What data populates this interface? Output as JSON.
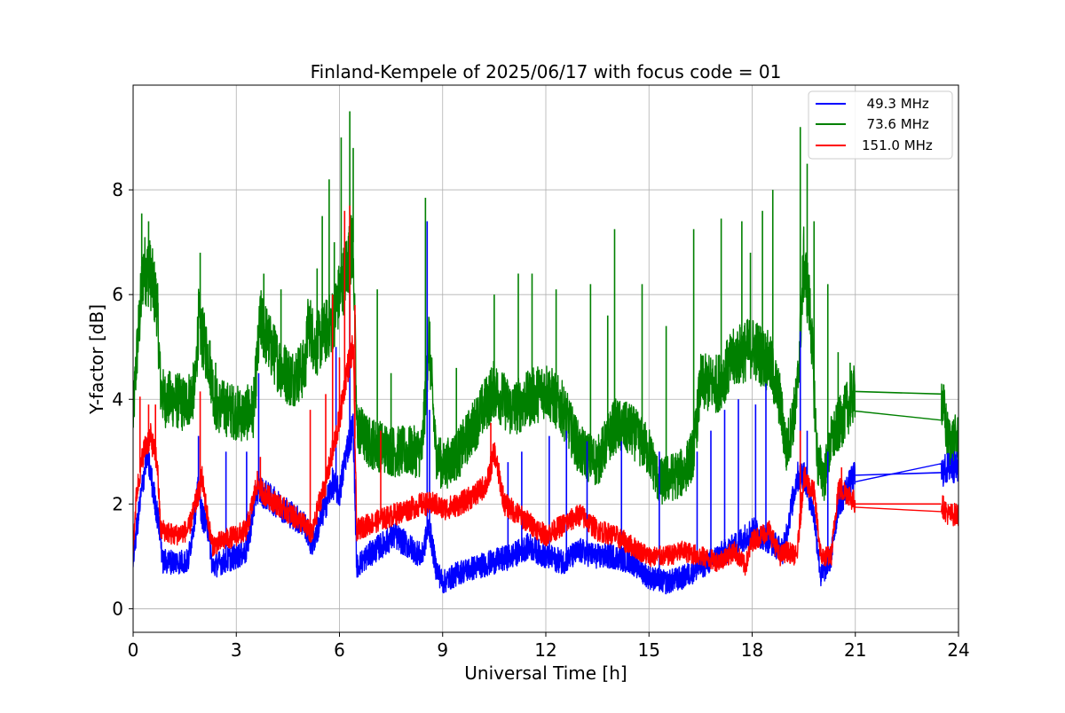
{
  "chart_data": {
    "type": "line",
    "title": "Finland-Kempele of 2025/06/17 with focus code = 01",
    "xlabel": "Universal Time [h]",
    "ylabel": "Y-factor [dB]",
    "xlim": [
      0,
      24
    ],
    "ylim": [
      -0.45,
      10.0
    ],
    "xticks": [
      0,
      3,
      6,
      9,
      12,
      15,
      18,
      21,
      24
    ],
    "yticks": [
      0,
      2,
      4,
      6,
      8
    ],
    "xtick_labels": [
      "0",
      "3",
      "6",
      "9",
      "12",
      "15",
      "18",
      "21",
      "24"
    ],
    "ytick_labels": [
      "0",
      "2",
      "4",
      "6",
      "8"
    ],
    "grid": true,
    "legend_position": "upper-right",
    "gap": [
      21.0,
      23.5
    ],
    "series": [
      {
        "name": "49.3 MHz",
        "legend_label": "  49.3 MHz",
        "color": "#0000ff",
        "x": [
          0.0,
          0.2,
          0.4,
          0.6,
          0.8,
          0.85,
          1.2,
          1.6,
          1.9,
          2.0,
          2.2,
          2.3,
          2.6,
          3.0,
          3.3,
          3.6,
          3.8,
          4.2,
          4.6,
          5.0,
          5.2,
          5.5,
          5.8,
          6.0,
          6.2,
          6.4,
          6.5,
          6.8,
          7.2,
          7.6,
          8.0,
          8.4,
          8.6,
          8.8,
          9.0,
          9.5,
          10.0,
          10.5,
          11.0,
          11.5,
          12.0,
          12.5,
          13.0,
          13.5,
          14.0,
          14.5,
          15.0,
          15.5,
          16.0,
          16.5,
          17.0,
          17.5,
          18.0,
          18.5,
          18.9,
          19.3,
          19.5,
          19.8,
          20.0,
          20.3,
          20.5,
          21.0,
          23.5,
          23.7,
          24.0
        ],
        "y": [
          1.0,
          2.0,
          3.0,
          2.2,
          1.4,
          0.9,
          0.9,
          0.9,
          2.3,
          1.8,
          1.5,
          0.8,
          0.9,
          1.0,
          1.1,
          2.3,
          2.2,
          2.0,
          1.8,
          1.6,
          1.2,
          1.8,
          2.4,
          2.2,
          3.0,
          3.5,
          0.8,
          1.0,
          1.2,
          1.4,
          1.2,
          1.0,
          1.6,
          0.8,
          0.5,
          0.7,
          0.8,
          0.9,
          1.0,
          1.2,
          1.0,
          0.9,
          1.1,
          1.0,
          1.0,
          0.9,
          0.6,
          0.5,
          0.6,
          0.8,
          1.0,
          1.2,
          1.5,
          1.3,
          1.1,
          2.5,
          2.6,
          1.8,
          0.6,
          1.0,
          2.0,
          2.55,
          2.6,
          2.7,
          2.7
        ],
        "spikes": [
          {
            "x": 1.9,
            "y": 3.3
          },
          {
            "x": 2.7,
            "y": 3.0
          },
          {
            "x": 3.3,
            "y": 3.0
          },
          {
            "x": 3.65,
            "y": 4.5
          },
          {
            "x": 5.9,
            "y": 5.0
          },
          {
            "x": 6.3,
            "y": 6.1
          },
          {
            "x": 8.55,
            "y": 7.4
          },
          {
            "x": 8.62,
            "y": 3.8
          },
          {
            "x": 10.9,
            "y": 2.8
          },
          {
            "x": 11.3,
            "y": 3.0
          },
          {
            "x": 12.1,
            "y": 3.3
          },
          {
            "x": 12.6,
            "y": 3.4
          },
          {
            "x": 13.2,
            "y": 3.2
          },
          {
            "x": 14.2,
            "y": 3.2
          },
          {
            "x": 15.3,
            "y": 3.0
          },
          {
            "x": 16.4,
            "y": 3.0
          },
          {
            "x": 16.8,
            "y": 3.4
          },
          {
            "x": 17.2,
            "y": 3.8
          },
          {
            "x": 17.6,
            "y": 4.0
          },
          {
            "x": 18.1,
            "y": 3.9
          },
          {
            "x": 18.4,
            "y": 4.3
          },
          {
            "x": 19.4,
            "y": 5.3
          },
          {
            "x": 19.6,
            "y": 3.4
          },
          {
            "x": 20.2,
            "y": 3.0
          }
        ]
      },
      {
        "name": "73.6 MHz",
        "legend_label": "  73.6 MHz",
        "color": "#008000",
        "x": [
          0.0,
          0.1,
          0.3,
          0.5,
          0.7,
          0.8,
          0.9,
          1.2,
          1.5,
          1.8,
          1.9,
          2.0,
          2.2,
          2.4,
          2.8,
          3.2,
          3.5,
          3.7,
          4.0,
          4.3,
          4.6,
          5.0,
          5.1,
          5.3,
          5.6,
          5.8,
          6.0,
          6.2,
          6.4,
          6.5,
          6.8,
          7.2,
          7.6,
          8.0,
          8.4,
          8.6,
          8.8,
          9.0,
          9.5,
          10.0,
          10.5,
          11.0,
          11.5,
          12.0,
          12.5,
          13.0,
          13.5,
          14.0,
          14.5,
          15.0,
          15.3,
          15.6,
          16.0,
          16.3,
          16.5,
          17.0,
          17.5,
          18.0,
          18.5,
          18.8,
          19.0,
          19.3,
          19.5,
          19.7,
          19.9,
          20.1,
          20.3,
          20.6,
          21.0,
          23.5,
          23.7,
          24.0
        ],
        "y": [
          3.6,
          4.8,
          6.5,
          6.4,
          5.8,
          4.2,
          4.0,
          4.0,
          3.9,
          4.2,
          5.5,
          5.2,
          4.8,
          3.9,
          3.8,
          3.7,
          3.8,
          5.5,
          5.0,
          4.6,
          4.4,
          4.6,
          5.5,
          5.0,
          5.3,
          5.5,
          6.0,
          6.5,
          7.0,
          3.5,
          3.2,
          3.1,
          3.0,
          3.0,
          3.0,
          5.2,
          3.0,
          2.7,
          3.0,
          3.6,
          4.2,
          3.8,
          4.0,
          4.2,
          3.8,
          3.0,
          2.8,
          3.5,
          3.4,
          3.0,
          2.4,
          2.5,
          2.6,
          3.0,
          4.3,
          4.3,
          4.8,
          5.0,
          4.7,
          4.0,
          3.0,
          4.0,
          6.6,
          5.6,
          2.8,
          2.5,
          3.2,
          3.6,
          4.15,
          4.1,
          3.2,
          3.2
        ],
        "spikes": [
          {
            "x": 0.25,
            "y": 7.55
          },
          {
            "x": 0.45,
            "y": 7.4
          },
          {
            "x": 1.95,
            "y": 6.8
          },
          {
            "x": 2.4,
            "y": 4.7
          },
          {
            "x": 3.8,
            "y": 6.4
          },
          {
            "x": 4.3,
            "y": 6.1
          },
          {
            "x": 5.35,
            "y": 6.5
          },
          {
            "x": 5.5,
            "y": 7.5
          },
          {
            "x": 5.7,
            "y": 8.2
          },
          {
            "x": 5.85,
            "y": 7.0
          },
          {
            "x": 6.05,
            "y": 9.0
          },
          {
            "x": 6.3,
            "y": 9.5
          },
          {
            "x": 6.4,
            "y": 8.8
          },
          {
            "x": 7.1,
            "y": 6.1
          },
          {
            "x": 7.5,
            "y": 4.5
          },
          {
            "x": 8.5,
            "y": 7.85
          },
          {
            "x": 9.4,
            "y": 4.6
          },
          {
            "x": 10.5,
            "y": 6.0
          },
          {
            "x": 11.2,
            "y": 6.4
          },
          {
            "x": 11.6,
            "y": 6.4
          },
          {
            "x": 12.3,
            "y": 6.1
          },
          {
            "x": 13.3,
            "y": 6.2
          },
          {
            "x": 13.8,
            "y": 5.6
          },
          {
            "x": 14.0,
            "y": 7.25
          },
          {
            "x": 14.8,
            "y": 6.2
          },
          {
            "x": 15.5,
            "y": 5.4
          },
          {
            "x": 16.3,
            "y": 7.25
          },
          {
            "x": 17.1,
            "y": 7.45
          },
          {
            "x": 17.7,
            "y": 7.4
          },
          {
            "x": 17.95,
            "y": 6.8
          },
          {
            "x": 18.3,
            "y": 7.6
          },
          {
            "x": 18.6,
            "y": 8.0
          },
          {
            "x": 19.4,
            "y": 9.2
          },
          {
            "x": 19.6,
            "y": 8.5
          },
          {
            "x": 19.8,
            "y": 7.4
          },
          {
            "x": 20.2,
            "y": 6.2
          },
          {
            "x": 20.5,
            "y": 4.9
          },
          {
            "x": 20.85,
            "y": 4.7
          }
        ]
      },
      {
        "name": "151.0 MHz",
        "legend_label": "151.0 MHz",
        "color": "#ff0000",
        "x": [
          0.0,
          0.1,
          0.3,
          0.5,
          0.7,
          0.8,
          0.9,
          1.2,
          1.6,
          1.9,
          2.0,
          2.2,
          2.3,
          2.6,
          3.0,
          3.3,
          3.6,
          3.8,
          4.2,
          4.6,
          5.0,
          5.2,
          5.4,
          5.6,
          5.8,
          6.0,
          6.2,
          6.4,
          6.5,
          6.8,
          7.2,
          7.6,
          8.0,
          8.4,
          8.8,
          9.0,
          9.5,
          10.0,
          10.3,
          10.5,
          10.8,
          11.2,
          11.6,
          12.0,
          12.5,
          13.0,
          13.5,
          14.0,
          14.5,
          15.0,
          15.5,
          16.0,
          16.5,
          17.0,
          17.5,
          17.8,
          18.0,
          18.5,
          18.8,
          19.0,
          19.3,
          19.5,
          19.8,
          20.0,
          20.3,
          20.5,
          20.8,
          21.0,
          23.5,
          23.7,
          24.0
        ],
        "y": [
          1.2,
          2.2,
          3.0,
          3.3,
          2.8,
          1.5,
          1.5,
          1.4,
          1.5,
          2.2,
          2.5,
          1.6,
          1.2,
          1.3,
          1.4,
          1.5,
          2.4,
          2.2,
          2.0,
          1.8,
          1.6,
          1.4,
          2.0,
          2.4,
          3.0,
          3.6,
          4.5,
          5.0,
          1.5,
          1.6,
          1.7,
          1.8,
          1.9,
          2.0,
          2.0,
          1.9,
          2.0,
          2.2,
          2.4,
          3.0,
          2.0,
          1.8,
          1.6,
          1.4,
          1.6,
          1.8,
          1.5,
          1.4,
          1.2,
          1.0,
          1.0,
          1.1,
          1.0,
          0.9,
          1.1,
          0.8,
          1.3,
          1.5,
          1.0,
          1.1,
          1.0,
          2.5,
          2.2,
          1.0,
          1.0,
          2.3,
          2.2,
          2.0,
          2.0,
          1.8,
          1.8
        ],
        "spikes": [
          {
            "x": 0.2,
            "y": 4.05
          },
          {
            "x": 0.45,
            "y": 3.9
          },
          {
            "x": 0.65,
            "y": 3.9
          },
          {
            "x": 1.95,
            "y": 4.15
          },
          {
            "x": 3.7,
            "y": 2.9
          },
          {
            "x": 5.15,
            "y": 3.8
          },
          {
            "x": 5.6,
            "y": 4.1
          },
          {
            "x": 5.8,
            "y": 6.0
          },
          {
            "x": 6.0,
            "y": 4.8
          },
          {
            "x": 6.15,
            "y": 7.6
          },
          {
            "x": 6.3,
            "y": 7.7
          },
          {
            "x": 6.45,
            "y": 5.8
          },
          {
            "x": 7.2,
            "y": 3.4
          },
          {
            "x": 10.4,
            "y": 3.55
          },
          {
            "x": 19.4,
            "y": 3.4
          },
          {
            "x": 20.6,
            "y": 2.7
          }
        ]
      }
    ]
  }
}
